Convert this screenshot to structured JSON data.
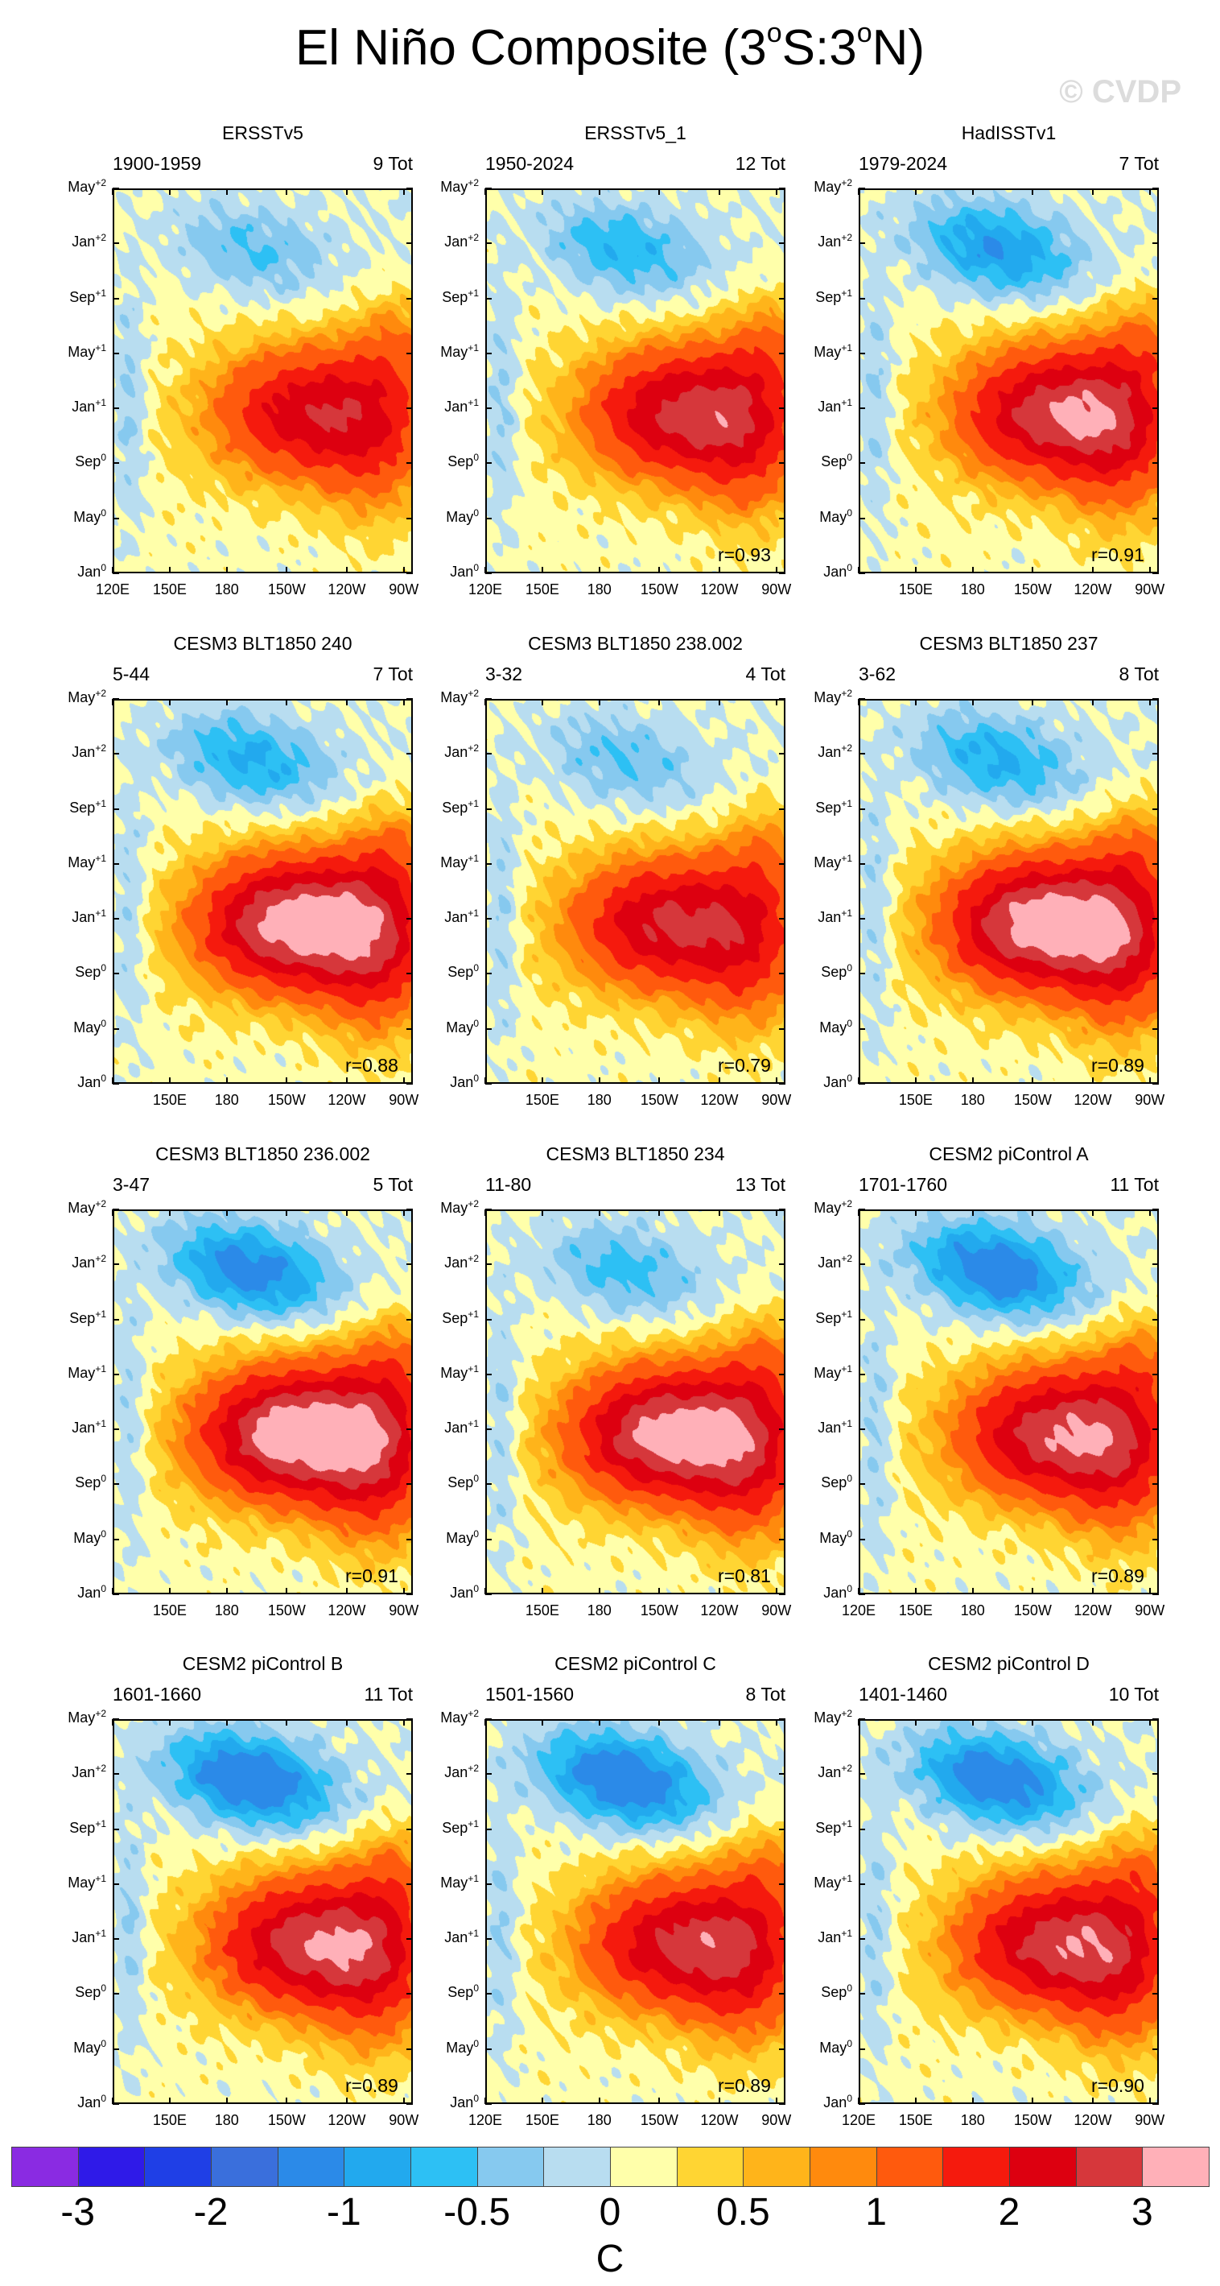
{
  "title": {
    "main": "El Niño Composite (3",
    "deg1": "o",
    "mid": "S:3",
    "deg2": "o",
    "end": "N)"
  },
  "watermark": "© CVDP",
  "colorbar": {
    "colors": [
      "#8a2be2",
      "#2f1ae8",
      "#1f3fe6",
      "#3a6fdc",
      "#2b8ae8",
      "#22a9ee",
      "#2dc0f4",
      "#86c9ef",
      "#b8ddf0",
      "#ffffaa",
      "#ffd533",
      "#ffb41a",
      "#ff8a0d",
      "#ff5a0d",
      "#f51a0d",
      "#dd0010",
      "#d6373b",
      "#ffb0b8"
    ],
    "labels": [
      "-3",
      "-2",
      "-1",
      "-0.5",
      "0",
      "0.5",
      "1",
      "2",
      "3"
    ],
    "label_cells": [
      1,
      3,
      5,
      7,
      9,
      11,
      13,
      15,
      17
    ],
    "unit": "C"
  },
  "axis": {
    "y_ticks": [
      {
        "m": "Jan",
        "s": "0"
      },
      {
        "m": "May",
        "s": "0"
      },
      {
        "m": "Sep",
        "s": "0"
      },
      {
        "m": "Jan",
        "s": "+1"
      },
      {
        "m": "May",
        "s": "+1"
      },
      {
        "m": "Sep",
        "s": "+1"
      },
      {
        "m": "Jan",
        "s": "+2"
      },
      {
        "m": "May",
        "s": "+2"
      }
    ],
    "x_ticks": [
      "120E",
      "150E",
      "180",
      "150W",
      "120W",
      "90W"
    ]
  },
  "chart_data": {
    "type": "heatmap",
    "panels": [
      {
        "title": "ERSSTv5",
        "period": "1900-1959",
        "count": "9 Tot",
        "r": "",
        "show_120E": true
      },
      {
        "title": "ERSSTv5_1",
        "period": "1950-2024",
        "count": "12 Tot",
        "r": "r=0.93",
        "show_120E": true
      },
      {
        "title": "HadISSTv1",
        "period": "1979-2024",
        "count": "7 Tot",
        "r": "r=0.91",
        "show_120E": false
      },
      {
        "title": "CESM3 BLT1850 240",
        "period": "5-44",
        "count": "7 Tot",
        "r": "r=0.88",
        "show_120E": false
      },
      {
        "title": "CESM3 BLT1850 238.002",
        "period": "3-32",
        "count": "4 Tot",
        "r": "r=0.79",
        "show_120E": false
      },
      {
        "title": "CESM3 BLT1850 237",
        "period": "3-62",
        "count": "8 Tot",
        "r": "r=0.89",
        "show_120E": false
      },
      {
        "title": "CESM3 BLT1850 236.002",
        "period": "3-47",
        "count": "5 Tot",
        "r": "r=0.91",
        "show_120E": false
      },
      {
        "title": "CESM3 BLT1850 234",
        "period": "11-80",
        "count": "13 Tot",
        "r": "r=0.81",
        "show_120E": false
      },
      {
        "title": "CESM2 piControl A",
        "period": "1701-1760",
        "count": "11 Tot",
        "r": "r=0.89",
        "show_120E": true
      },
      {
        "title": "CESM2 piControl B",
        "period": "1601-1660",
        "count": "11 Tot",
        "r": "r=0.89",
        "show_120E": false
      },
      {
        "title": "CESM2 piControl C",
        "period": "1501-1560",
        "count": "8 Tot",
        "r": "r=0.89",
        "show_120E": true
      },
      {
        "title": "CESM2 piControl D",
        "period": "1401-1460",
        "count": "10 Tot",
        "r": "r=0.90",
        "show_120E": true
      }
    ],
    "x_range": [
      "120E",
      "90W"
    ],
    "y_range": [
      "Jan0",
      "May+2"
    ],
    "peak_amp": [
      2.1,
      2.4,
      2.6,
      3.2,
      2.4,
      3.2,
      3.3,
      3.1,
      2.6,
      2.6,
      2.4,
      2.5
    ],
    "neg_amp": [
      0.6,
      0.8,
      1.1,
      0.9,
      0.6,
      0.9,
      1.3,
      0.7,
      1.4,
      1.5,
      1.5,
      1.4
    ]
  }
}
